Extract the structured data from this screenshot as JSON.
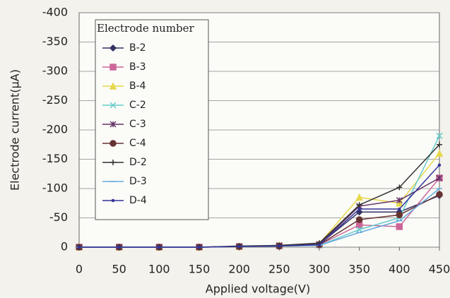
{
  "chart_data": {
    "type": "line",
    "x_label": "Applied voltage(V)",
    "y_label": "Electrode current(μA)",
    "legend_title": "Electrode number",
    "x": [
      0,
      50,
      100,
      150,
      200,
      250,
      300,
      350,
      400,
      450
    ],
    "xlim": [
      0,
      450
    ],
    "xticks": [
      0,
      50,
      100,
      150,
      200,
      250,
      300,
      350,
      400,
      450
    ],
    "ylim": [
      0,
      -400
    ],
    "yticks": [
      0,
      -50,
      -100,
      -150,
      -200,
      -250,
      -300,
      -350,
      -400
    ],
    "grid": true,
    "legend": "upper left",
    "series": [
      {
        "name": "B-2",
        "color": "#333366",
        "marker": "diamond",
        "values": [
          0,
          0,
          0,
          0,
          -1,
          -2,
          -5,
          -60,
          -60,
          -88
        ]
      },
      {
        "name": "B-3",
        "color": "#cc6699",
        "marker": "square",
        "values": [
          0,
          0,
          0,
          0,
          -1,
          -2,
          -4,
          -38,
          -35,
          -118
        ]
      },
      {
        "name": "B-4",
        "color": "#e6d84a",
        "marker": "triangle",
        "values": [
          0,
          0,
          0,
          0,
          -1,
          -3,
          -6,
          -85,
          -75,
          -160
        ]
      },
      {
        "name": "C-2",
        "color": "#66cccc",
        "marker": "x",
        "values": [
          0,
          0,
          0,
          0,
          -1,
          -2,
          -3,
          -30,
          -50,
          -190
        ]
      },
      {
        "name": "C-3",
        "color": "#663366",
        "marker": "star",
        "values": [
          0,
          0,
          0,
          0,
          -1,
          -3,
          -5,
          -70,
          -80,
          -118
        ]
      },
      {
        "name": "C-4",
        "color": "#663333",
        "marker": "circle",
        "values": [
          0,
          0,
          0,
          0,
          -1,
          -2,
          -4,
          -47,
          -55,
          -90
        ]
      },
      {
        "name": "D-2",
        "color": "#333333",
        "marker": "plus",
        "values": [
          0,
          0,
          0,
          0,
          -2,
          -3,
          -7,
          -72,
          -102,
          -175
        ]
      },
      {
        "name": "D-3",
        "color": "#66aadd",
        "marker": "dash",
        "values": [
          0,
          0,
          0,
          0,
          -1,
          -2,
          -3,
          -25,
          -45,
          -100
        ]
      },
      {
        "name": "D-4",
        "color": "#333399",
        "marker": "none",
        "values": [
          0,
          0,
          0,
          0,
          -1,
          -2,
          -4,
          -65,
          -65,
          -140
        ]
      }
    ]
  }
}
